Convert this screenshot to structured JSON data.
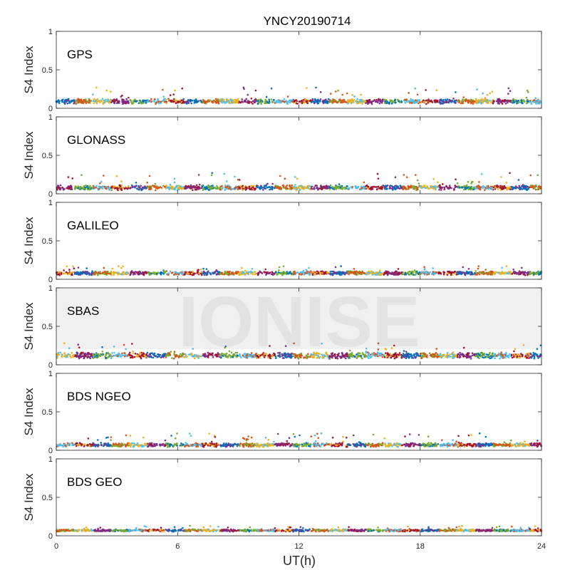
{
  "chart_data": {
    "type": "scatter",
    "title": "YNCY20190714",
    "xlabel": "UT(h)",
    "ylabel": "S4 Index",
    "xlim": [
      0,
      24
    ],
    "ylim": [
      0,
      1
    ],
    "xticks": [
      "0",
      "6",
      "12",
      "18",
      "24"
    ],
    "yticks": [
      "0",
      "0.5",
      "1"
    ],
    "grid": false,
    "watermark": "IONISE",
    "colors": [
      "#0072BD",
      "#D95319",
      "#EDB120",
      "#7E2F8E",
      "#77AC30",
      "#4DBEEE",
      "#A2142F"
    ],
    "panels": [
      {
        "label": "GPS",
        "baseline": 0.09,
        "spread": 0.025,
        "max": 0.27
      },
      {
        "label": "GLONASS",
        "baseline": 0.08,
        "spread": 0.025,
        "max": 0.27
      },
      {
        "label": "GALILEO",
        "baseline": 0.08,
        "spread": 0.02,
        "max": 0.17
      },
      {
        "label": "SBAS",
        "baseline": 0.12,
        "spread": 0.03,
        "max": 0.28,
        "watermark": true
      },
      {
        "label": "BDS NGEO",
        "baseline": 0.07,
        "spread": 0.02,
        "max": 0.22
      },
      {
        "label": "BDS GEO",
        "baseline": 0.07,
        "spread": 0.012,
        "max": 0.13
      }
    ]
  }
}
